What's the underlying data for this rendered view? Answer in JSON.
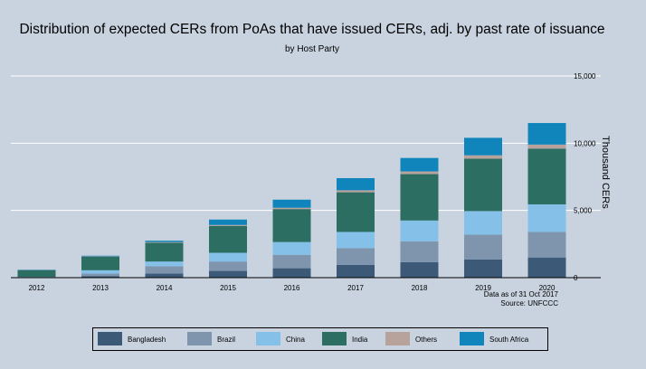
{
  "chart_data": {
    "type": "bar",
    "stacked": true,
    "title": "Distribution of expected CERs from PoAs that have issued CERs, adj. by past rate of issuance",
    "subtitle": "by Host Party",
    "ylabel": "Thousand CERs",
    "ylim": [
      0,
      15000
    ],
    "yticks": [
      0,
      5000,
      10000,
      15000
    ],
    "ytick_labels": [
      "0",
      "5,000",
      "10,000",
      "15,000"
    ],
    "grid": true,
    "legend_position": "bottom",
    "categories": [
      "2012",
      "2013",
      "2014",
      "2015",
      "2016",
      "2017",
      "2018",
      "2019",
      "2020"
    ],
    "series": [
      {
        "name": "Bangladesh",
        "color": "#3c5a78",
        "values": [
          0,
          100,
          300,
          500,
          700,
          950,
          1150,
          1350,
          1500
        ]
      },
      {
        "name": "Brazil",
        "color": "#7e95ad",
        "values": [
          0,
          200,
          550,
          700,
          1000,
          1250,
          1550,
          1850,
          1900
        ]
      },
      {
        "name": "China",
        "color": "#84c0e8",
        "values": [
          50,
          250,
          350,
          650,
          950,
          1200,
          1550,
          1750,
          2050
        ]
      },
      {
        "name": "India",
        "color": "#2d6e63",
        "values": [
          500,
          1000,
          1400,
          2000,
          2450,
          2950,
          3450,
          3900,
          4150
        ]
      },
      {
        "name": "Others",
        "color": "#b8a29c",
        "values": [
          20,
          30,
          50,
          70,
          100,
          150,
          200,
          250,
          300
        ]
      },
      {
        "name": "South Africa",
        "color": "#0f85bb",
        "values": [
          30,
          50,
          100,
          400,
          600,
          900,
          1000,
          1300,
          1600
        ]
      }
    ],
    "annotations": [
      "Data as of 31 Oct 2017",
      "Source: UNFCCC"
    ]
  }
}
